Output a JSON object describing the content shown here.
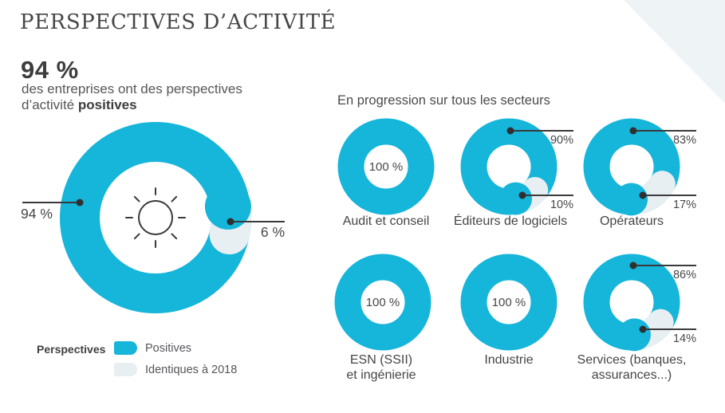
{
  "header": {
    "title": "PERSPECTIVES D’ACTIVITÉ",
    "stat_value": "94 %",
    "stat_line1": "des entreprises ont des perspectives",
    "stat_line2_prefix": "d’activité",
    "stat_line2_bold": "positives"
  },
  "sectors_header": "En progression sur tous les secteurs",
  "legend": {
    "title": "Perspectives",
    "items": [
      {
        "label": "Positives",
        "color": "#16b5da"
      },
      {
        "label": "Identiques à 2018",
        "color": "#e8eff2"
      }
    ]
  },
  "colors": {
    "positive": "#16b5da",
    "identical": "#e8eff2",
    "corner_triangle": "#eef3f6",
    "line": "#3a3a3b",
    "dot": "#2f3032",
    "text_dark": "#3d3d3f",
    "text_gray": "#55565a"
  },
  "chart_data": {
    "type": "donut",
    "title": "Perspectives d’activité",
    "legend_entries": [
      "Positives",
      "Identiques à 2018"
    ],
    "overall": {
      "positives_pct": 94,
      "identiques_2018_pct": 6,
      "positive_label": "94 %",
      "identical_label": "6 %"
    },
    "sectors": [
      {
        "name": "Audit et conseil",
        "name_lines": [
          "Audit et conseil"
        ],
        "positives_pct": 100,
        "identiques_2018_pct": 0,
        "center_label": "100 %"
      },
      {
        "name": "Éditeurs de logiciels",
        "name_lines": [
          "Éditeurs de logiciels"
        ],
        "positives_pct": 90,
        "identiques_2018_pct": 10,
        "positive_label": "90%",
        "identical_label": "10%"
      },
      {
        "name": "Opérateurs",
        "name_lines": [
          "Opérateurs"
        ],
        "positives_pct": 83,
        "identiques_2018_pct": 17,
        "positive_label": "83%",
        "identical_label": "17%"
      },
      {
        "name": "ESN (SSII) et ingénierie",
        "name_lines": [
          "ESN (SSII)",
          "et ingénierie"
        ],
        "positives_pct": 100,
        "identiques_2018_pct": 0,
        "center_label": "100 %"
      },
      {
        "name": "Industrie",
        "name_lines": [
          "Industrie"
        ],
        "positives_pct": 100,
        "identiques_2018_pct": 0,
        "center_label": "100 %"
      },
      {
        "name": "Services (banques, assurances...)",
        "name_lines": [
          "Services (banques,",
          "assurances...)"
        ],
        "positives_pct": 86,
        "identiques_2018_pct": 14,
        "positive_label": "86%",
        "identical_label": "14%"
      }
    ]
  }
}
